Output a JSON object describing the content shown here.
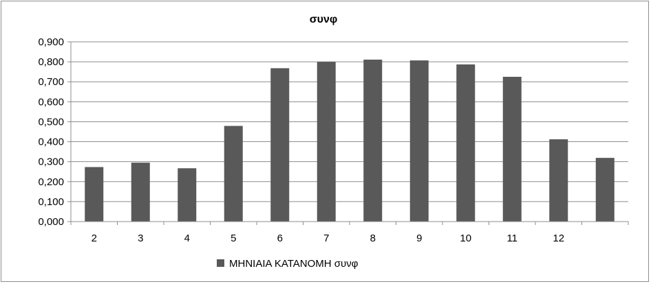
{
  "chart_data": {
    "type": "bar",
    "title": "συνφ",
    "xlabel": "",
    "ylabel": "",
    "categories": [
      "2",
      "3",
      "4",
      "5",
      "6",
      "7",
      "8",
      "9",
      "10",
      "11",
      "12",
      ""
    ],
    "series": [
      {
        "name": "ΜΗΝΙΑΙΑ ΚΑΤΑΝΟΜΗ συνφ",
        "values": [
          0.273,
          0.295,
          0.267,
          0.479,
          0.768,
          0.8,
          0.811,
          0.807,
          0.787,
          0.725,
          0.412,
          0.319
        ],
        "color": "#595959"
      }
    ],
    "ylim": [
      0,
      0.9
    ],
    "yticks": [
      "0,000",
      "0,100",
      "0,200",
      "0,300",
      "0,400",
      "0,500",
      "0,600",
      "0,700",
      "0,800",
      "0,900"
    ],
    "grid": true,
    "legend_position": "bottom"
  }
}
